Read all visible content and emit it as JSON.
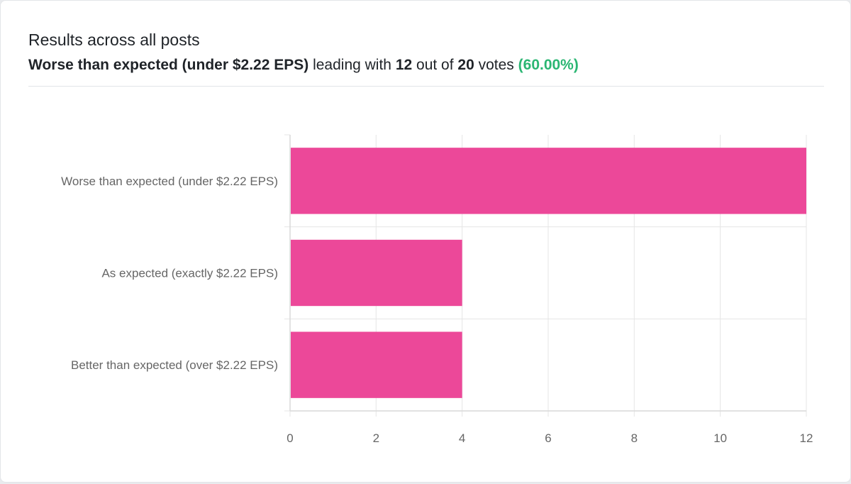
{
  "header": {
    "title": "Results across all posts",
    "leader_label": "Worse than expected (under $2.22 EPS)",
    "leading_with_text": " leading with ",
    "leader_votes": "12",
    "out_of_text": " out of ",
    "total_votes": "20",
    "votes_text": " votes ",
    "leader_percent": "(60.00%)"
  },
  "colors": {
    "bar": "#ec4899",
    "percent": "#2bb673",
    "grid": "#e5e5e5"
  },
  "chart_data": {
    "type": "bar",
    "orientation": "horizontal",
    "categories": [
      "Worse than expected (under $2.22 EPS)",
      "As expected (exactly $2.22 EPS)",
      "Better than expected (over $2.22 EPS)"
    ],
    "values": [
      12,
      4,
      4
    ],
    "xlim": [
      0,
      12
    ],
    "xticks": [
      0,
      2,
      4,
      6,
      8,
      10,
      12
    ],
    "grid": true,
    "legend": "none"
  }
}
